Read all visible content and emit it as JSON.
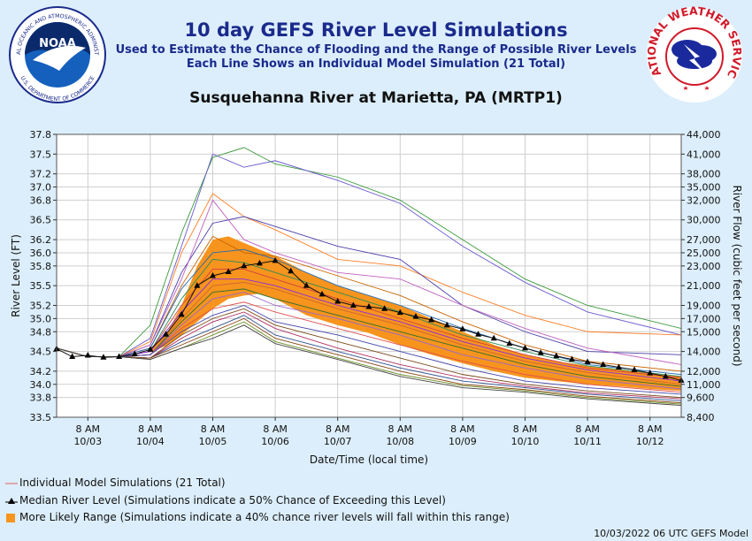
{
  "header": {
    "title": "10 day GEFS River Level Simulations",
    "subtitle1": "Used to Estimate the Chance of Flooding and the Range of Possible River Levels",
    "subtitle2": "Each Line Shows an Individual Model Simulation (21 Total)",
    "location": "Susquehanna River at Marietta, PA (MRTP1)"
  },
  "logos": {
    "noaa_text": "NOAA",
    "noaa_ring_top": "NATIONAL OCEANIC AND ATMOSPHERIC ADMINISTRATION",
    "noaa_ring_bottom": "U.S. DEPARTMENT OF COMMERCE",
    "nws_ring": "NATIONAL WEATHER SERVICE"
  },
  "chart_data": {
    "type": "line",
    "xlabel": "Date/Time (local time)",
    "ylabel": "River Level (FT)",
    "y2label": "River Flow (cubic feet per second)",
    "x_range_hours": [
      -12,
      228
    ],
    "ylim": [
      33.5,
      37.8
    ],
    "x_tick_hours": [
      0,
      24,
      48,
      72,
      96,
      120,
      144,
      168,
      192,
      216
    ],
    "x_tick_labels": [
      [
        "8 AM",
        "10/03"
      ],
      [
        "8 AM",
        "10/04"
      ],
      [
        "8 AM",
        "10/05"
      ],
      [
        "8 AM",
        "10/06"
      ],
      [
        "8 AM",
        "10/07"
      ],
      [
        "8 AM",
        "10/08"
      ],
      [
        "8 AM",
        "10/09"
      ],
      [
        "8 AM",
        "10/10"
      ],
      [
        "8 AM",
        "10/11"
      ],
      [
        "8 AM",
        "10/12"
      ]
    ],
    "y_ticks": [
      33.5,
      33.8,
      34.0,
      34.2,
      34.5,
      34.8,
      35.0,
      35.2,
      35.5,
      35.8,
      36.0,
      36.2,
      36.5,
      36.8,
      37.0,
      37.2,
      37.5,
      37.8
    ],
    "y_tick_labels": [
      "33.5",
      "33.8",
      "34.0",
      "34.2",
      "34.5",
      "34.8",
      "35.0",
      "35.2",
      "35.5",
      "35.8",
      "36.0",
      "36.2",
      "36.5",
      "36.8",
      "37.0",
      "37.2",
      "37.5",
      "37.8"
    ],
    "y2_tick_labels": [
      "8,400",
      "9,600",
      "11,000",
      "12,000",
      "14,000",
      "15,000",
      "17,000",
      "19,000",
      "21,000",
      "23,000",
      "25,000",
      "27,000",
      "30,000",
      "32,000",
      "35,000",
      "38,000",
      "41,000",
      "44,000"
    ],
    "grid": true,
    "range_x": [
      24,
      30,
      36,
      42,
      48,
      54,
      60,
      66,
      72,
      84,
      96,
      108,
      120,
      132,
      144,
      156,
      168,
      180,
      192,
      204,
      216,
      228
    ],
    "range_upper": [
      34.55,
      34.75,
      35.2,
      35.8,
      36.2,
      36.25,
      36.15,
      36.05,
      35.95,
      35.7,
      35.5,
      35.35,
      35.2,
      35.0,
      34.8,
      34.6,
      34.45,
      34.35,
      34.28,
      34.22,
      34.17,
      34.12
    ],
    "range_lower": [
      34.5,
      34.58,
      34.75,
      34.95,
      35.15,
      35.3,
      35.35,
      35.38,
      35.3,
      35.05,
      34.9,
      34.78,
      34.6,
      34.45,
      34.32,
      34.2,
      34.1,
      34.05,
      34.0,
      33.97,
      33.93,
      33.9
    ],
    "median": {
      "x": [
        -12,
        -6,
        0,
        6,
        12,
        18,
        24,
        30,
        36,
        42,
        48,
        54,
        60,
        66,
        72,
        78,
        84,
        90,
        96,
        102,
        108,
        114,
        120,
        126,
        132,
        138,
        144,
        150,
        156,
        162,
        168,
        174,
        180,
        186,
        192,
        198,
        204,
        210,
        216,
        222,
        228
      ],
      "y": [
        34.54,
        34.42,
        34.44,
        34.41,
        34.42,
        34.46,
        34.53,
        34.76,
        35.06,
        35.5,
        35.65,
        35.71,
        35.8,
        35.84,
        35.88,
        35.72,
        35.5,
        35.37,
        35.26,
        35.2,
        35.18,
        35.15,
        35.09,
        35.03,
        34.98,
        34.9,
        34.84,
        34.76,
        34.7,
        34.62,
        34.55,
        34.48,
        34.43,
        34.38,
        34.34,
        34.3,
        34.26,
        34.22,
        34.17,
        34.12,
        34.06
      ]
    },
    "members_x": [
      -12,
      0,
      12,
      24,
      36,
      48,
      60,
      72,
      96,
      120,
      144,
      168,
      192,
      228
    ],
    "members": [
      [
        34.55,
        34.42,
        34.42,
        34.9,
        36.3,
        37.45,
        37.6,
        37.35,
        37.15,
        36.8,
        36.2,
        35.6,
        35.2,
        34.85
      ],
      [
        34.55,
        34.42,
        34.42,
        34.7,
        36.1,
        37.5,
        37.3,
        37.4,
        37.1,
        36.75,
        36.1,
        35.55,
        35.1,
        34.75
      ],
      [
        34.55,
        34.42,
        34.42,
        34.65,
        36.0,
        36.9,
        36.55,
        36.35,
        35.9,
        35.8,
        35.4,
        35.05,
        34.8,
        34.75
      ],
      [
        34.55,
        34.42,
        34.42,
        34.6,
        35.7,
        36.45,
        36.55,
        36.4,
        36.1,
        35.9,
        35.2,
        34.8,
        34.5,
        34.45
      ],
      [
        34.55,
        34.42,
        34.42,
        34.6,
        35.6,
        36.8,
        36.2,
        36.0,
        35.7,
        35.6,
        35.2,
        34.85,
        34.55,
        34.3
      ],
      [
        34.55,
        34.42,
        34.42,
        34.55,
        35.5,
        36.25,
        36.0,
        35.95,
        35.65,
        35.35,
        34.95,
        34.6,
        34.35,
        34.2
      ],
      [
        34.55,
        34.42,
        34.42,
        34.55,
        35.45,
        36.0,
        36.05,
        35.9,
        35.5,
        35.2,
        34.85,
        34.55,
        34.3,
        34.15
      ],
      [
        34.55,
        34.42,
        34.42,
        34.5,
        35.3,
        35.9,
        35.85,
        35.7,
        35.4,
        35.1,
        34.75,
        34.5,
        34.28,
        34.12
      ],
      [
        34.55,
        34.42,
        34.42,
        34.5,
        35.2,
        35.75,
        35.75,
        35.6,
        35.3,
        35.0,
        34.7,
        34.45,
        34.25,
        34.1
      ],
      [
        34.55,
        34.42,
        34.42,
        34.5,
        35.1,
        35.6,
        35.6,
        35.5,
        35.2,
        34.95,
        34.65,
        34.4,
        34.22,
        34.05
      ],
      [
        34.55,
        34.42,
        34.42,
        34.45,
        35.0,
        35.5,
        35.55,
        35.45,
        35.15,
        34.9,
        34.6,
        34.35,
        34.18,
        34.0
      ],
      [
        34.55,
        34.42,
        34.42,
        34.45,
        34.95,
        35.4,
        35.45,
        35.3,
        35.05,
        34.8,
        34.55,
        34.3,
        34.12,
        33.97
      ],
      [
        34.55,
        34.42,
        34.42,
        34.45,
        34.9,
        35.3,
        35.4,
        35.2,
        35.0,
        34.75,
        34.45,
        34.25,
        34.08,
        33.93
      ],
      [
        34.55,
        34.42,
        34.42,
        34.45,
        34.85,
        35.15,
        35.25,
        35.1,
        34.85,
        34.6,
        34.35,
        34.15,
        34.0,
        33.88
      ],
      [
        34.55,
        34.42,
        34.42,
        34.45,
        34.8,
        35.05,
        35.2,
        34.95,
        34.75,
        34.5,
        34.25,
        34.05,
        33.95,
        33.85
      ],
      [
        34.55,
        34.42,
        34.42,
        34.4,
        34.75,
        35.0,
        35.15,
        34.9,
        34.65,
        34.4,
        34.15,
        34.0,
        33.9,
        33.8
      ],
      [
        34.55,
        34.42,
        34.42,
        34.4,
        34.7,
        34.95,
        35.1,
        34.85,
        34.55,
        34.3,
        34.1,
        33.97,
        33.87,
        33.78
      ],
      [
        34.55,
        34.42,
        34.42,
        34.4,
        34.65,
        34.85,
        35.05,
        34.75,
        34.5,
        34.25,
        34.05,
        33.95,
        33.85,
        33.75
      ],
      [
        34.55,
        34.42,
        34.42,
        34.4,
        34.6,
        34.8,
        35.0,
        34.7,
        34.45,
        34.2,
        34.0,
        33.92,
        33.82,
        33.72
      ],
      [
        34.55,
        34.42,
        34.42,
        34.38,
        34.55,
        34.75,
        34.95,
        34.65,
        34.4,
        34.15,
        33.98,
        33.9,
        33.8,
        33.7
      ],
      [
        34.55,
        34.42,
        34.42,
        34.38,
        34.55,
        34.7,
        34.9,
        34.62,
        34.38,
        34.12,
        33.95,
        33.88,
        33.78,
        33.68
      ]
    ],
    "member_colors": [
      "#3a9a3a",
      "#6a5acd",
      "#ff7f27",
      "#4b3ea8",
      "#c060c0",
      "#c86400",
      "#1f6bb5",
      "#2e8b57",
      "#d34040",
      "#8a2be2",
      "#cc6633",
      "#2d6e2d",
      "#9966cc",
      "#e05050",
      "#4444aa",
      "#7a4a1a",
      "#b03060",
      "#2f4f8f",
      "#8b4513",
      "#6b8e23",
      "#444444"
    ],
    "legend": [
      {
        "label": "Individual Model Simulations (21 Total)",
        "marker": "line",
        "color": "#e06060"
      },
      {
        "label": "Median River Level (Simulations indicate a 50% Chance of Exceeding this Level)",
        "marker": "triangle-line",
        "color": "#000000"
      },
      {
        "label": "More Likely Range (Simulations indicate a 40% chance river levels will fall within this range)",
        "marker": "square",
        "color": "#f7941d"
      }
    ],
    "footer": "10/03/2022 06 UTC GEFS Model"
  }
}
